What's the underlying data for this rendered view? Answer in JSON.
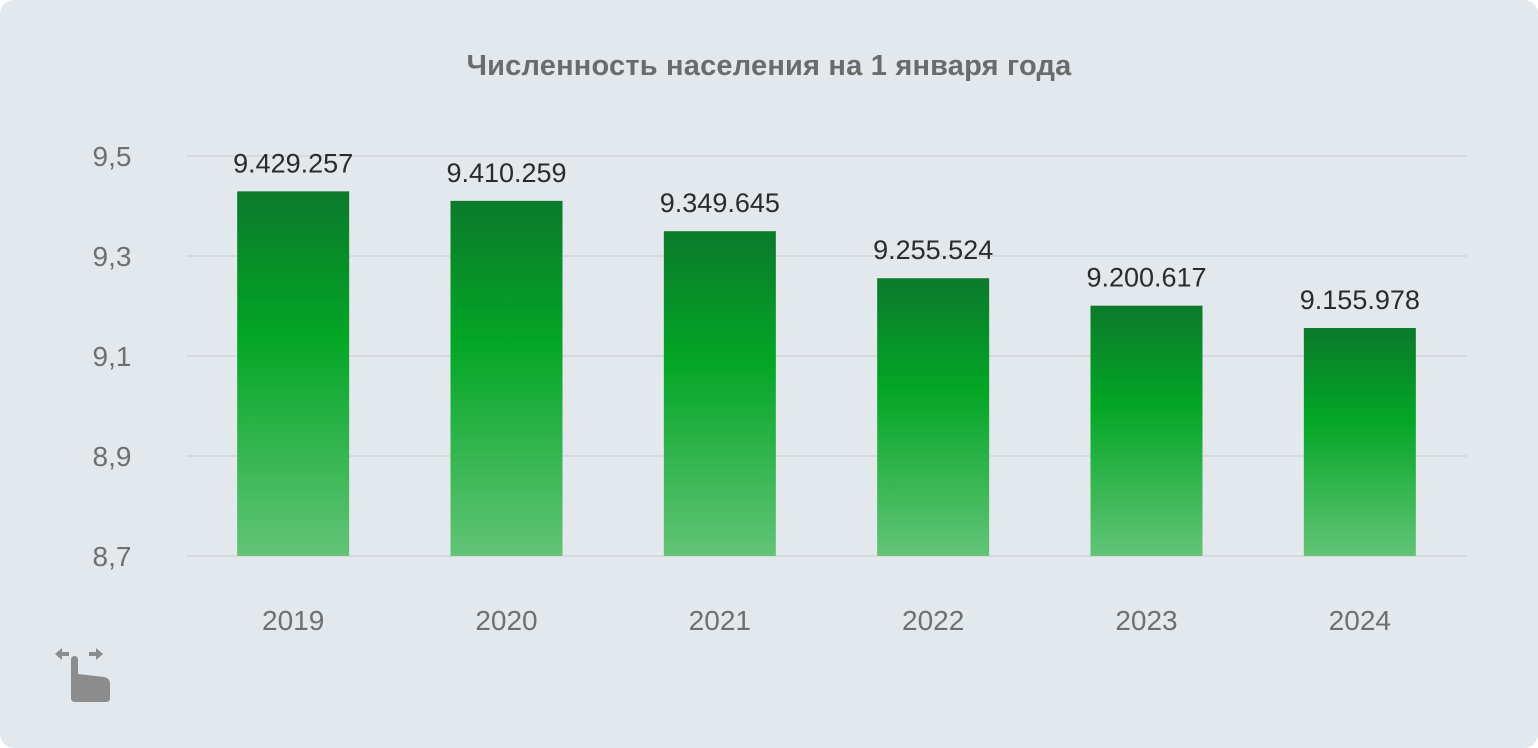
{
  "colors": {
    "background": "#e3e8ec",
    "bar_top": "#0b7a2a",
    "bar_mid": "#03a626",
    "bar_bottom": "#62c476",
    "grid": "#c8ccd0",
    "text_value": "#2b2b2b",
    "text_axis": "#6f6f6f",
    "icon": "#8c8c8c"
  },
  "icon": "swipe-gesture-icon",
  "chart_data": {
    "type": "bar",
    "title": "Численность населения на 1 января года",
    "xlabel": "",
    "ylabel": "",
    "categories": [
      "2019",
      "2020",
      "2021",
      "2022",
      "2023",
      "2024"
    ],
    "values": [
      9.429257,
      9.410259,
      9.349645,
      9.255524,
      9.200617,
      9.155978
    ],
    "value_labels": [
      "9.429.257",
      "9.410.259",
      "9.349.645",
      "9.255.524",
      "9.200.617",
      "9.155.978"
    ],
    "ylim": [
      8.7,
      9.5
    ],
    "yticks": [
      8.7,
      8.9,
      9.1,
      9.3,
      9.5
    ],
    "ytick_labels": [
      "8,7",
      "8,9",
      "9,1",
      "9,3",
      "9,5"
    ],
    "grid": true,
    "legend": "none"
  }
}
